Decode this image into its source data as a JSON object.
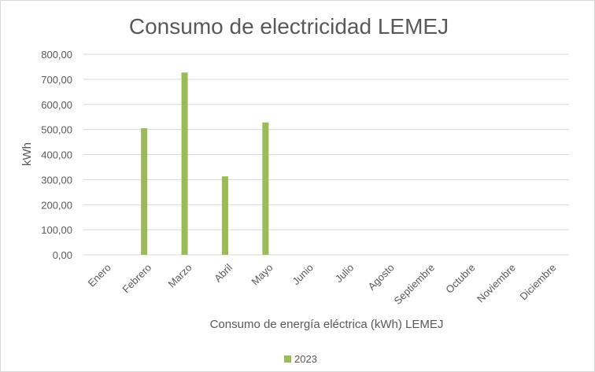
{
  "chart_data": {
    "type": "bar",
    "title": "Consumo de electricidad LEMEJ",
    "xlabel": "Consumo de energía eléctrica (kWh) LEMEJ",
    "ylabel": "kWh",
    "categories": [
      "Enero",
      "Febrero",
      "Marzo",
      "Abril",
      "Mayo",
      "Junio",
      "Julio",
      "Agosto",
      "Septiembre",
      "Octubre",
      "Noviembre",
      "Diciembre"
    ],
    "series": [
      {
        "name": "2023",
        "values": [
          0,
          505,
          727,
          313,
          528,
          0,
          0,
          0,
          0,
          0,
          0,
          0
        ]
      }
    ],
    "ylim": [
      0,
      800
    ],
    "yticks": [
      "0,00",
      "100,00",
      "200,00",
      "300,00",
      "400,00",
      "500,00",
      "600,00",
      "700,00",
      "800,00"
    ],
    "grid": true,
    "legend_position": "bottom",
    "colors": {
      "series": "#9bbb59",
      "grid": "#d9d9d9",
      "text": "#595959",
      "title": "#595959"
    }
  }
}
